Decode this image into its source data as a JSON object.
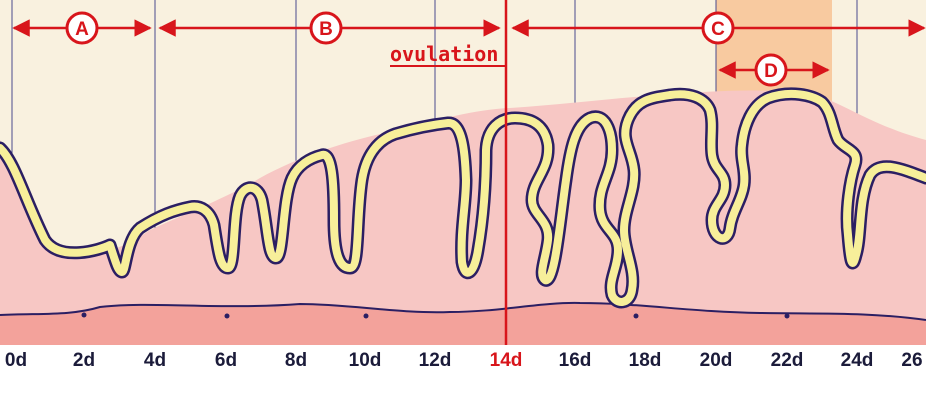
{
  "ticks": [
    "0d",
    "2d",
    "4d",
    "6d",
    "8d",
    "10d",
    "12d",
    "14d",
    "16d",
    "18d",
    "20d",
    "22d",
    "24d",
    "26"
  ],
  "highlight_tick": "14d",
  "ovulation_label": "ovulation",
  "phases": {
    "a": {
      "label": "A"
    },
    "b": {
      "label": "B"
    },
    "c": {
      "label": "C"
    },
    "d": {
      "label": "D"
    }
  },
  "colors": {
    "background": "#f9f1df",
    "grid_line": "#4a4a8c",
    "endometrium": "#f7c7c4",
    "basal_layer": "#f3a29b",
    "gland_outline": "#2b1f63",
    "gland_fill": "#f7ef9a",
    "accent_red": "#d8151b",
    "highlight_band": "#f8b985",
    "tick_text": "#1b1b3a"
  }
}
